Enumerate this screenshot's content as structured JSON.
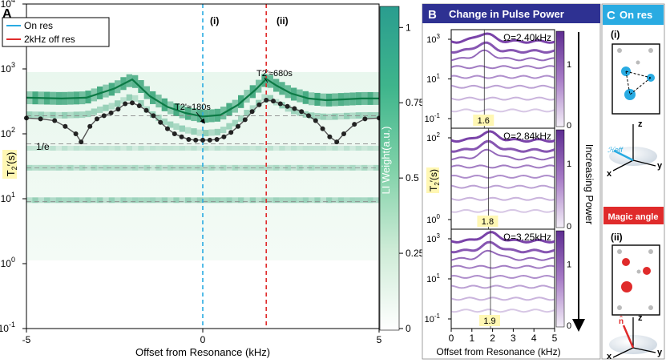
{
  "chart_data": [
    {
      "panel": "A",
      "type": "heatmap",
      "xlabel": "Offset from Resonance (kHz)",
      "ylabel": "T2'(s)",
      "xlim": [
        -5,
        5
      ],
      "ylim_log10": [
        -1,
        4
      ],
      "x_ticks": [
        "-5",
        "0",
        "5"
      ],
      "y_ticks": [
        {
          "base": "10",
          "exp": "-1"
        },
        {
          "base": "10",
          "exp": "0"
        },
        {
          "base": "10",
          "exp": "1"
        },
        {
          "base": "10",
          "exp": "2"
        },
        {
          "base": "10",
          "exp": "3"
        },
        {
          "base": "10",
          "exp": "4"
        }
      ],
      "colorbar": {
        "label": "LI Weight(a.u.)",
        "ticks": [
          "0",
          "0.25",
          "0.5",
          "0.75",
          "1"
        ],
        "colors": [
          "#ffffff",
          "#cdebd6",
          "#7fd1a8",
          "#3fb58c",
          "#2a9d8f"
        ]
      },
      "legend": [
        {
          "label": "On res",
          "color": "#29abe2"
        },
        {
          "label": "2kHz off res",
          "color": "#e02b2b"
        }
      ],
      "vlines": [
        {
          "x": 0,
          "label": "(i)",
          "color": "#29abe2"
        },
        {
          "x": 1.8,
          "label": "(ii)",
          "color": "#e02b2b"
        }
      ],
      "annotations": {
        "t1": {
          "text": "T2'≈180s",
          "x": 0,
          "y": 180
        },
        "t2": {
          "text": "T2'≈680s",
          "x": 1.8,
          "y": 680
        },
        "oneE": {
          "text": "1/e"
        }
      },
      "green_curve": {
        "x": [
          -5,
          -4,
          -3.3,
          -2.5,
          -2.0,
          -1.5,
          -1.0,
          -0.5,
          0,
          0.5,
          1.0,
          1.5,
          1.8,
          2.1,
          2.5,
          3.0,
          3.5,
          4.0,
          4.5,
          5
        ],
        "y": [
          360,
          350,
          360,
          500,
          690,
          380,
          260,
          210,
          185,
          195,
          280,
          480,
          700,
          550,
          420,
          350,
          330,
          340,
          350,
          350
        ]
      },
      "black_curve": {
        "x": [
          -5,
          -4.6,
          -4.2,
          -3.9,
          -3.6,
          -3.45,
          -3.2,
          -3.0,
          -2.8,
          -2.6,
          -2.4,
          -2.2,
          -2.0,
          -1.8,
          -1.6,
          -1.4,
          -1.2,
          -1.0,
          -0.8,
          -0.6,
          -0.4,
          -0.2,
          0,
          0.2,
          0.4,
          0.6,
          0.8,
          1.0,
          1.2,
          1.4,
          1.6,
          1.8,
          2.0,
          2.2,
          2.4,
          2.6,
          2.8,
          3.0,
          3.2,
          3.4,
          3.6,
          3.8,
          4.0,
          4.3,
          4.6,
          5
        ],
        "y": [
          175,
          170,
          160,
          130,
          100,
          75,
          130,
          170,
          190,
          210,
          240,
          290,
          300,
          270,
          230,
          190,
          150,
          120,
          100,
          90,
          82,
          80,
          80,
          80,
          82,
          90,
          105,
          130,
          165,
          220,
          280,
          330,
          320,
          290,
          265,
          245,
          220,
          190,
          160,
          120,
          90,
          75,
          100,
          140,
          170,
          175
        ]
      },
      "dashed_levels_y": [
        190,
        70,
        30,
        9
      ]
    },
    {
      "panel": "B",
      "type": "heatmap",
      "title": "Change in Pulse Power",
      "xlabel": "Offset from Resonance (kHz)",
      "ylabel": "T2'(s)",
      "x_ticks": [
        "0",
        "1",
        "2",
        "3",
        "4",
        "5"
      ],
      "arrow_label": "Increasing Power",
      "colorbar_ticks": [
        "0",
        "1"
      ],
      "subplots": [
        {
          "omega": "Ω=2.40kHz",
          "marker": "1.6",
          "y_ticks": [
            {
              "base": "10",
              "exp": "-1"
            },
            {
              "base": "10",
              "exp": "1"
            },
            {
              "base": "10",
              "exp": "3"
            }
          ]
        },
        {
          "omega": "Ω=2.84kHz",
          "marker": "1.8",
          "y_ticks": [
            {
              "base": "10",
              "exp": "0"
            },
            {
              "base": "10",
              "exp": "2"
            }
          ]
        },
        {
          "omega": "Ω=3.25kHz",
          "marker": "1.9",
          "y_ticks": [
            {
              "base": "10",
              "exp": "-1"
            },
            {
              "base": "10",
              "exp": "1"
            },
            {
              "base": "10",
              "exp": "3"
            }
          ]
        }
      ]
    },
    {
      "panel": "C",
      "type": "diagram",
      "title": "On res",
      "sub_i": "(i)",
      "sub_ii": "(ii)",
      "magic": "Magic angle",
      "axis_labels": {
        "z": "z",
        "x": "x",
        "y": "y"
      },
      "heff": "ℋeff",
      "nhat": "n̂"
    }
  ]
}
